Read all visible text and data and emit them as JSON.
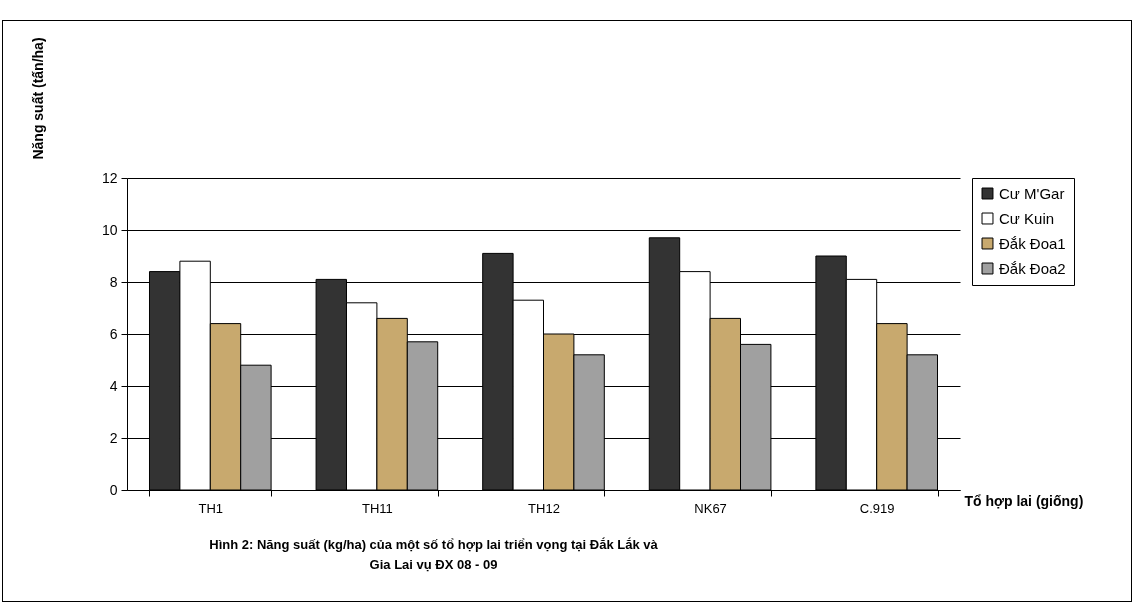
{
  "chart_data": {
    "type": "bar",
    "title": "Hình 2: Năng suất (kg/ha) của một số tổ hợp lai triển vọng tại Đắk Lắk và\nGia Lai vụ ĐX 08 - 09",
    "xlabel": "Tổ hợp lai (giống)",
    "ylabel": "Năng suất (tấn/ha)",
    "categories": [
      "TH1",
      "TH11",
      "TH12",
      "NK67",
      "C.919"
    ],
    "series": [
      {
        "name": "Cư M'Gar",
        "color": "#333333",
        "values": [
          8.4,
          8.1,
          9.1,
          9.7,
          9.0
        ]
      },
      {
        "name": "Cư Kuin",
        "color": "#ffffff",
        "values": [
          8.8,
          7.2,
          7.3,
          8.4,
          8.1
        ]
      },
      {
        "name": "Đắk Đoa1",
        "color": "#c8a96e",
        "values": [
          6.4,
          6.6,
          6.0,
          6.6,
          6.4
        ]
      },
      {
        "name": "Đắk Đoa2",
        "color": "#a0a0a0",
        "values": [
          4.8,
          5.7,
          5.2,
          5.6,
          5.2
        ]
      }
    ],
    "ylim": [
      0,
      12
    ],
    "yticks": [
      0,
      2,
      4,
      6,
      8,
      10,
      12
    ],
    "grid": "y",
    "legend": "right"
  }
}
